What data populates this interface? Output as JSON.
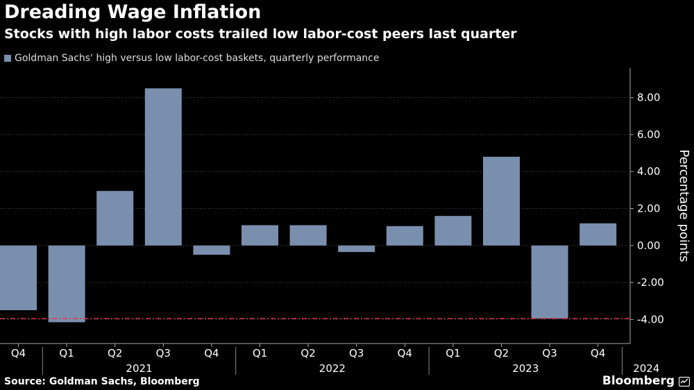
{
  "header": {
    "title": "Dreading Wage Inflation",
    "subtitle": "Stocks with high labor costs trailed low labor-cost peers last quarter"
  },
  "footer": {
    "source": "Source: Goldman Sachs, Bloomberg",
    "brand": "Bloomberg"
  },
  "colors": {
    "bar": "#7a8fae",
    "reference_line": "#e0334a",
    "grid": "#555555",
    "background": "#000000"
  },
  "chart_data": {
    "type": "bar",
    "title": "Dreading Wage Inflation",
    "subtitle": "Stocks with high labor costs trailed low labor-cost peers last quarter",
    "categories": [
      "Q4",
      "Q1",
      "Q2",
      "Q3",
      "Q4",
      "Q1",
      "Q2",
      "Q3",
      "Q4",
      "Q1",
      "Q2",
      "Q3",
      "Q4"
    ],
    "years": [
      {
        "label": "2021",
        "start": 1,
        "end": 4
      },
      {
        "label": "2022",
        "start": 5,
        "end": 8
      },
      {
        "label": "2023",
        "start": 9,
        "end": 12
      },
      {
        "label": "2024",
        "start": 13,
        "end": 13
      }
    ],
    "series": [
      {
        "name": "Goldman Sachs' high versus low labor-cost baskets, quarterly performance",
        "values": [
          -3.5,
          -4.15,
          2.95,
          8.5,
          -0.5,
          1.1,
          1.1,
          -0.35,
          1.05,
          1.6,
          4.8,
          -3.95,
          1.2
        ]
      }
    ],
    "reference_line": -3.95,
    "ylabel": "Percentage points",
    "xlabel": "",
    "ylim": [
      -5.3,
      9.6
    ],
    "yticks": [
      "8.00",
      "6.00",
      "4.00",
      "2.00",
      "0.00",
      "-2.00",
      "-4.00"
    ],
    "ytick_values": [
      8,
      6,
      4,
      2,
      0,
      -2,
      -4
    ],
    "grid": true,
    "legend_position": "top-left",
    "y_axis_side": "right"
  }
}
